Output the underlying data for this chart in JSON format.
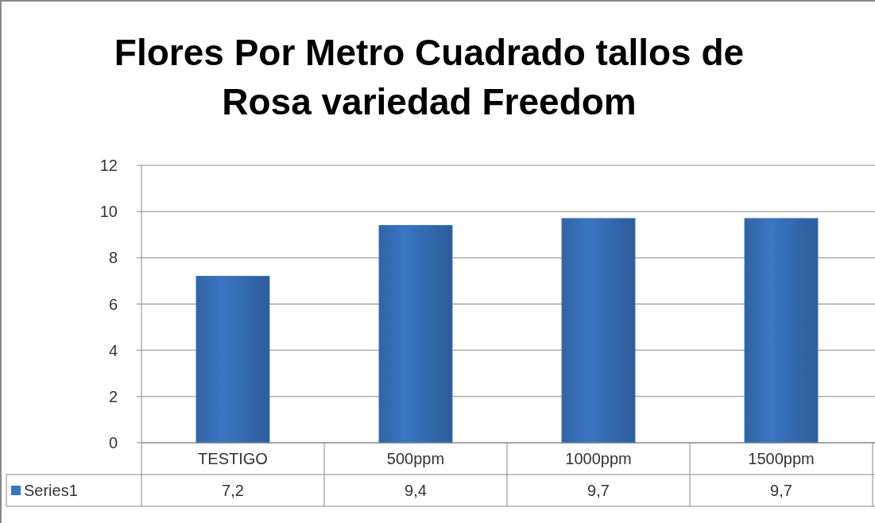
{
  "chart_data": {
    "type": "bar",
    "title": "Flores Por Metro Cuadrado tallos de Rosa variedad Freedom",
    "categories": [
      "TESTIGO",
      "500ppm",
      "1000ppm",
      "1500ppm"
    ],
    "series": [
      {
        "name": "Series1",
        "color": "#3a76c4",
        "values": [
          7.2,
          9.4,
          9.7,
          9.7
        ],
        "value_labels": [
          "7,2",
          "9,4",
          "9,7",
          "9,7"
        ]
      }
    ],
    "ylim": [
      0,
      12
    ],
    "yticks": [
      0,
      2,
      4,
      6,
      8,
      10,
      12
    ],
    "grid": "y",
    "legend": "bottom"
  }
}
